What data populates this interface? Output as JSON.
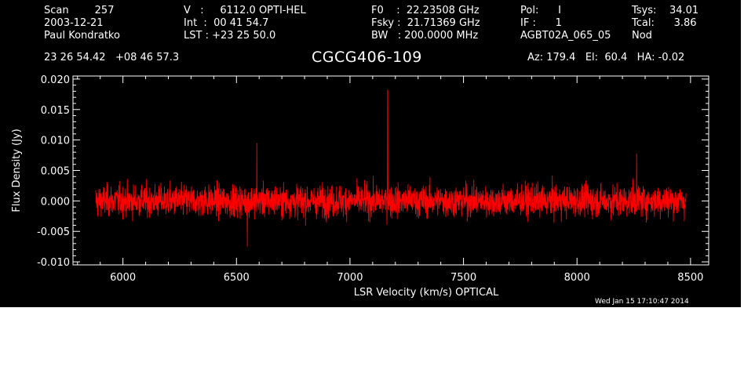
{
  "header": {
    "col1": [
      "Scan        257",
      "2003-12-21",
      "Paul Kondratko"
    ],
    "col2": [
      "V   :     6112.0 OPTI-HEL",
      "Int  :  00 41 54.7",
      "LST : +23 25 50.0"
    ],
    "col3": [
      "F0    :  22.23508 GHz",
      "Fsky :  21.71369 GHz",
      "BW   : 200.0000 MHz"
    ],
    "col4": [
      "Pol:      I",
      "IF :      1",
      "AGBT02A_065_05"
    ],
    "col5": [
      "Tsys:    34.01",
      "Tcal:      3.86",
      "Nod"
    ],
    "coords": "23 26 54.42   +08 46 57.3",
    "object": "CGCG406-109",
    "pointing": "Az: 179.4   El:  60.4   HA: -0.02",
    "timestamp": "Wed Jan 15 17:10:47 2014"
  },
  "colors": {
    "background": "#000000",
    "axes": "#ffffff",
    "spectrum": "#ff0000"
  },
  "chart_data": {
    "type": "line",
    "xlabel": "LSR Velocity (km/s) OPTICAL",
    "ylabel": "Flux Density (Jy)",
    "xlim": [
      5780,
      8580
    ],
    "ylim": [
      -0.0105,
      0.0205
    ],
    "x_ticks": [
      6000,
      6500,
      7000,
      7500,
      8000,
      8500
    ],
    "x_tick_labels": [
      "6000",
      "6500",
      "7000",
      "7500",
      "8000",
      "8500"
    ],
    "y_ticks": [
      -0.01,
      -0.005,
      0.0,
      0.005,
      0.01,
      0.015,
      0.02
    ],
    "y_tick_labels": [
      "-0.010",
      "-0.005",
      "0.000",
      "0.005",
      "0.010",
      "0.015",
      "0.020"
    ],
    "series": [
      {
        "style": "noise-spectrum",
        "x_range": [
          5880,
          8480
        ],
        "n_points": 2800,
        "baseline": 0.0,
        "rms": 0.0018,
        "spikes": [
          {
            "x": 7166,
            "y": 0.0182
          },
          {
            "x": 6590,
            "y": 0.0095
          },
          {
            "x": 6548,
            "y": -0.0075
          },
          {
            "x": 8263,
            "y": 0.0078
          }
        ]
      }
    ]
  }
}
